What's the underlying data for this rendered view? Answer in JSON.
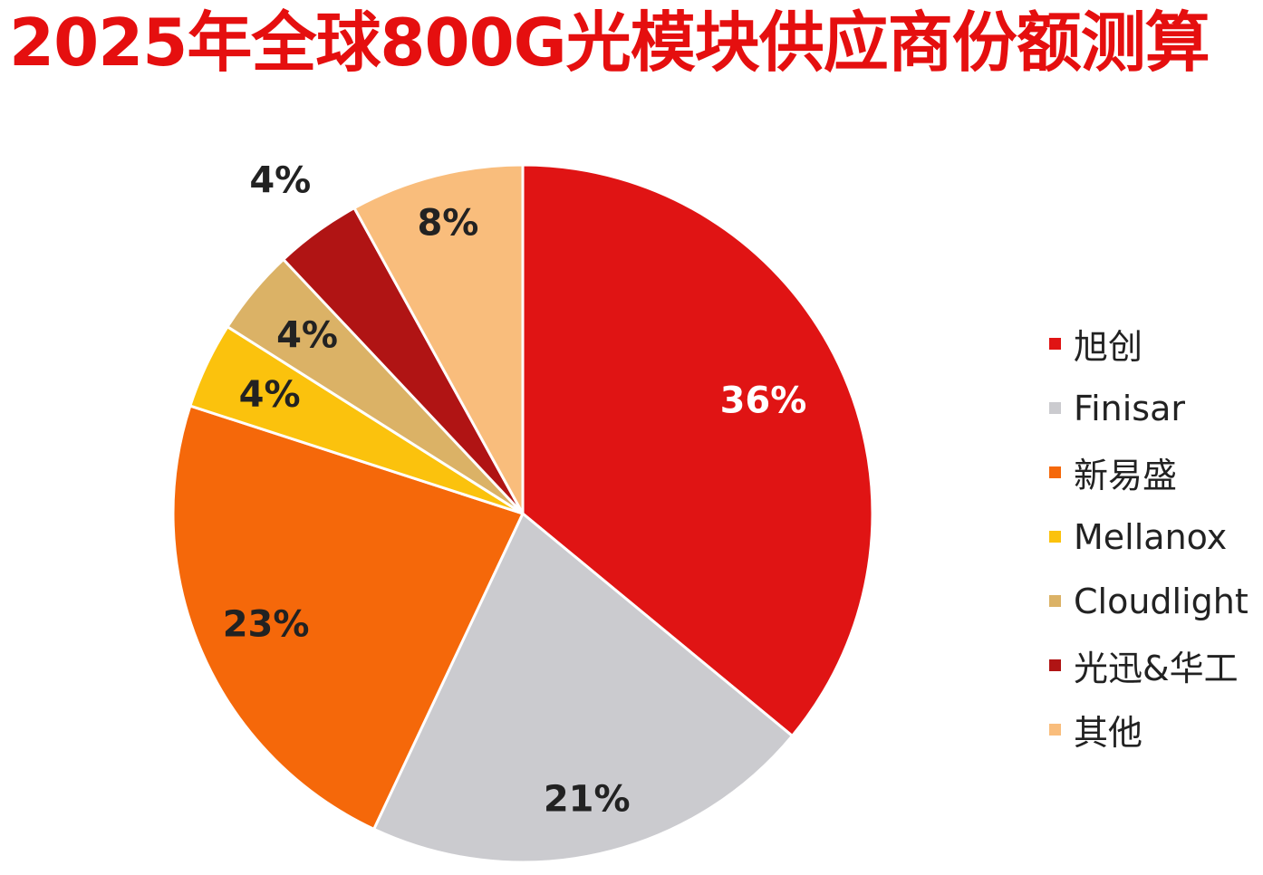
{
  "chart_data": {
    "type": "pie",
    "title": "2025年全球800G光模块供应商份额测算",
    "categories": [
      "旭创",
      "Finisar",
      "新易盛",
      "Mellanox",
      "Cloudlight",
      "光迅&华工",
      "其他"
    ],
    "values": [
      36,
      21,
      23,
      4,
      4,
      4,
      8
    ],
    "value_labels": [
      "36%",
      "21%",
      "23%",
      "4%",
      "4%",
      "4%",
      "8%"
    ],
    "colors": [
      "#e01414",
      "#cbcbcf",
      "#f5680a",
      "#fbc20d",
      "#dbb266",
      "#b01414",
      "#f9bd7c"
    ],
    "label_colors": [
      "#ffffff",
      "#222222",
      "#222222",
      "#222222",
      "#222222",
      "#222222",
      "#222222"
    ],
    "legend_position": "right"
  }
}
